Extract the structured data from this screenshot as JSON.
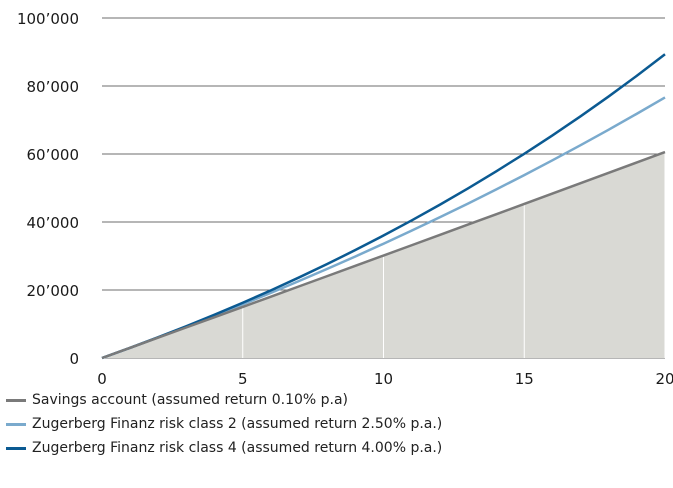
{
  "chart_data": {
    "type": "line",
    "x": [
      0,
      1,
      2,
      3,
      4,
      5,
      6,
      7,
      8,
      9,
      10,
      11,
      12,
      13,
      14,
      15,
      16,
      17,
      18,
      19,
      20
    ],
    "x_ticks": [
      0,
      5,
      10,
      15,
      20
    ],
    "y_ticks": [
      0,
      20000,
      40000,
      60000,
      80000,
      100000
    ],
    "y_tick_labels": [
      "0",
      "20’000",
      "40’000",
      "60’000",
      "80’000",
      "100’000"
    ],
    "xlim": [
      0,
      20
    ],
    "ylim": [
      0,
      100000
    ],
    "grid": "horizontal",
    "legend_position": "bottom-left",
    "series": [
      {
        "name": "Savings account (assumed return 0.10% p.a)",
        "color": "#7a7a7a",
        "fill": "#d9d9d4",
        "values": [
          0,
          3000,
          6003,
          9009,
          12018,
          15030,
          18045,
          21063,
          24084,
          27108,
          30135,
          33165,
          36198,
          39235,
          42274,
          45317,
          48362,
          51410,
          54461,
          57516,
          60573
        ]
      },
      {
        "name": "Zugerberg Finanz risk class 2 (assumed return 2.50% p.a.)",
        "color": "#7aaacd",
        "values": [
          0,
          3000,
          6075,
          9227,
          12458,
          15769,
          19163,
          22642,
          26208,
          29863,
          33610,
          37450,
          41386,
          45421,
          49556,
          53795,
          58140,
          62593,
          67158,
          71837,
          76633
        ]
      },
      {
        "name": "Zugerberg Finanz risk class 4 (assumed return 4.00% p.a.)",
        "color": "#0b5a92",
        "values": [
          0,
          3000,
          6120,
          9365,
          12739,
          16249,
          19899,
          23695,
          27643,
          31749,
          36018,
          40459,
          45077,
          49880,
          54875,
          60070,
          65473,
          71091,
          76935,
          83012,
          89332
        ]
      }
    ]
  }
}
